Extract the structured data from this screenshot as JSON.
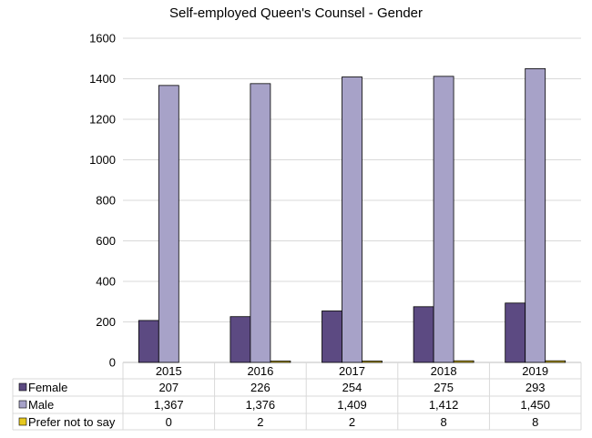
{
  "chart_data": {
    "type": "bar",
    "title": "Self-employed Queen's Counsel - Gender",
    "xlabel": "",
    "ylabel": "",
    "ylim": [
      0,
      1600
    ],
    "yticks": [
      0,
      200,
      400,
      600,
      800,
      1000,
      1200,
      1400,
      1600
    ],
    "grid": true,
    "legend_placement": "data-table-left",
    "categories": [
      "2015",
      "2016",
      "2017",
      "2018",
      "2019"
    ],
    "series": [
      {
        "name": "Female",
        "color": "#5c4a82",
        "values": [
          207,
          226,
          254,
          275,
          293
        ],
        "labels": [
          "207",
          "226",
          "254",
          "275",
          "293"
        ]
      },
      {
        "name": "Male",
        "color": "#a7a2c8",
        "values": [
          1367,
          1376,
          1409,
          1412,
          1450
        ],
        "labels": [
          "1,367",
          "1,376",
          "1,409",
          "1,412",
          "1,450"
        ]
      },
      {
        "name": "Prefer not to say",
        "color": "#e6c81f",
        "values": [
          0,
          2,
          2,
          8,
          8
        ],
        "labels": [
          "0",
          "2",
          "2",
          "8",
          "8"
        ]
      }
    ]
  }
}
